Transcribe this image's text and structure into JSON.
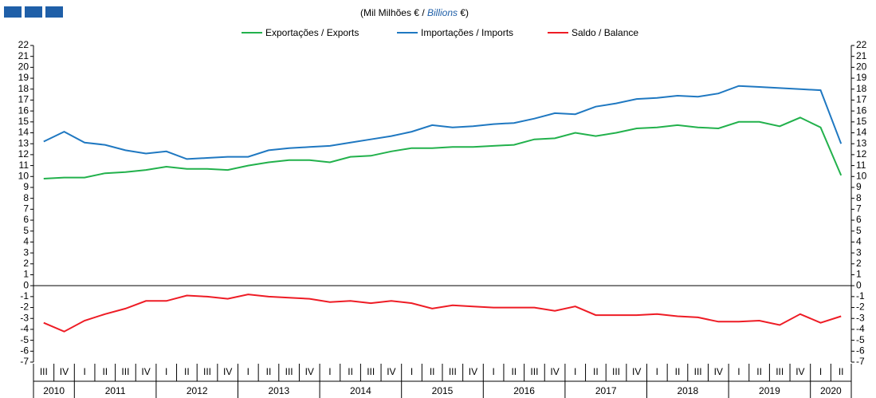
{
  "chart_data": {
    "type": "line",
    "title_parts": [
      "(Mil Milhões € / ",
      "Billions",
      " €)"
    ],
    "categories": [
      "III",
      "IV",
      "I",
      "II",
      "III",
      "IV",
      "I",
      "II",
      "III",
      "IV",
      "I",
      "II",
      "III",
      "IV",
      "I",
      "II",
      "III",
      "IV",
      "I",
      "II",
      "III",
      "IV",
      "I",
      "II",
      "III",
      "IV",
      "I",
      "II",
      "III",
      "IV",
      "I",
      "II",
      "III",
      "IV",
      "I",
      "II",
      "III",
      "IV",
      "I",
      "II"
    ],
    "years": [
      "2010",
      "2011",
      "2012",
      "2013",
      "2014",
      "2015",
      "2016",
      "2017",
      "2018",
      "2019",
      "2020"
    ],
    "series": [
      {
        "name": "Exportações / Exports",
        "color": "#22b14c",
        "values": [
          9.8,
          9.9,
          9.9,
          10.3,
          10.4,
          10.6,
          10.9,
          10.7,
          10.7,
          10.6,
          11.0,
          11.3,
          11.5,
          11.5,
          11.3,
          11.8,
          11.9,
          12.3,
          12.6,
          12.6,
          12.7,
          12.7,
          12.8,
          12.9,
          13.4,
          13.5,
          14.0,
          13.7,
          14.0,
          14.4,
          14.5,
          14.7,
          14.5,
          14.4,
          15.0,
          15.0,
          14.6,
          15.4,
          14.5,
          10.1
        ]
      },
      {
        "name": "Importações / Imports",
        "color": "#1f78c1",
        "values": [
          13.2,
          14.1,
          13.1,
          12.9,
          12.4,
          12.1,
          12.3,
          11.6,
          11.7,
          11.8,
          11.8,
          12.4,
          12.6,
          12.7,
          12.8,
          13.1,
          13.4,
          13.7,
          14.1,
          14.7,
          14.5,
          14.6,
          14.8,
          14.9,
          15.3,
          15.8,
          15.7,
          16.4,
          16.7,
          17.1,
          17.2,
          17.4,
          17.3,
          17.6,
          18.3,
          18.2,
          18.1,
          18.0,
          17.9,
          13.0
        ]
      },
      {
        "name": "Saldo / Balance",
        "color": "#ee1c25",
        "values": [
          -3.4,
          -4.2,
          -3.2,
          -2.6,
          -2.1,
          -1.4,
          -1.4,
          -0.9,
          -1.0,
          -1.2,
          -0.8,
          -1.0,
          -1.1,
          -1.2,
          -1.5,
          -1.4,
          -1.6,
          -1.4,
          -1.6,
          -2.1,
          -1.8,
          -1.9,
          -2.0,
          -2.0,
          -2.0,
          -2.3,
          -1.9,
          -2.7,
          -2.7,
          -2.7,
          -2.6,
          -2.8,
          -2.9,
          -3.3,
          -3.3,
          -3.2,
          -3.6,
          -2.6,
          -3.4,
          -2.8
        ]
      }
    ],
    "ylim": [
      -7,
      22
    ],
    "yticks": [
      -7,
      -6,
      -5,
      -4,
      -3,
      -2,
      -1,
      0,
      1,
      2,
      3,
      4,
      5,
      6,
      7,
      8,
      9,
      10,
      11,
      12,
      13,
      14,
      15,
      16,
      17,
      18,
      19,
      20,
      21,
      22
    ]
  }
}
